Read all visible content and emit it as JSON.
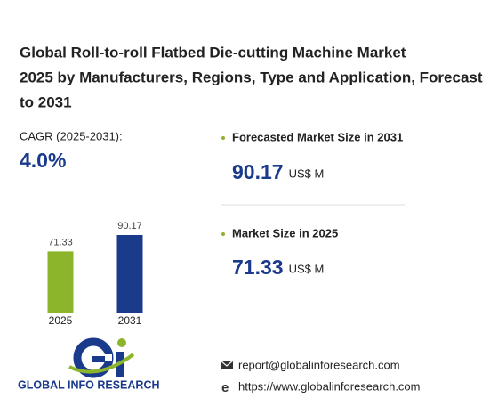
{
  "title": "Global Roll-to-roll Flatbed Die-cutting Machine Market 2025 by Manufacturers, Regions, Type and Application, Forecast to 2031",
  "cagr": {
    "label": "CAGR (2025-2031):",
    "value": "4.0%"
  },
  "stats": [
    {
      "label": "Forecasted Market Size in 2031",
      "value": 90.17,
      "unit": "US$ M"
    },
    {
      "label": "Market Size in 2025",
      "value": 71.33,
      "unit": "US$ M"
    }
  ],
  "chart_data": {
    "type": "bar",
    "categories": [
      "2025",
      "2031"
    ],
    "values": [
      71.33,
      90.17
    ],
    "colors": [
      "#8db52c",
      "#1a3a8c"
    ]
  },
  "logo": {
    "text": "GLOBAL INFO RESEARCH"
  },
  "contact": {
    "email": "report@globalinforesearch.com",
    "website": "https://www.globalinforesearch.com"
  }
}
